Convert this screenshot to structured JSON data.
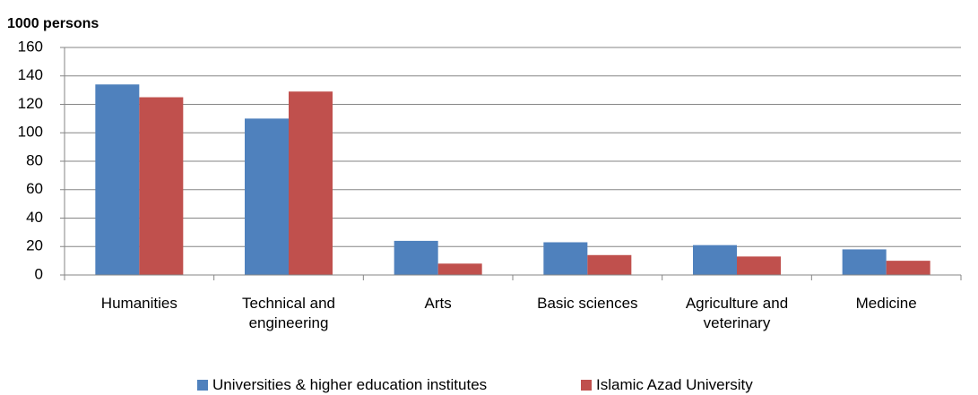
{
  "chart_data": {
    "type": "bar",
    "y_label": "1000  persons",
    "categories": [
      "Humanities",
      "Technical and engineering",
      "Arts",
      "Basic sciences",
      "Agriculture and veterinary",
      "Medicine"
    ],
    "series": [
      {
        "name": "Universities & higher education institutes",
        "color": "#4f81bd",
        "values": [
          134,
          110,
          24,
          23,
          21,
          18
        ]
      },
      {
        "name": "Islamic Azad University",
        "color": "#c0504d",
        "values": [
          125,
          129,
          8,
          14,
          13,
          10
        ]
      }
    ],
    "ylim": [
      0,
      160
    ],
    "yticks": [
      0,
      20,
      40,
      60,
      80,
      100,
      120,
      140,
      160
    ],
    "grid": true,
    "legend": "bottom"
  }
}
